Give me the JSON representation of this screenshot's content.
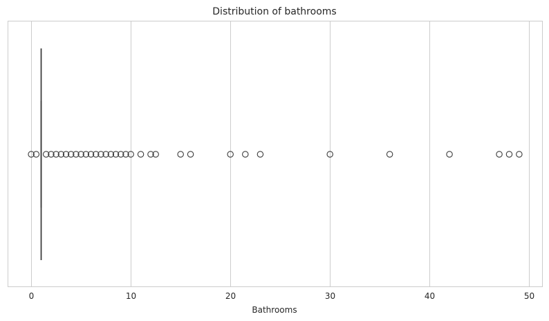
{
  "chart_data": {
    "type": "boxplot",
    "orientation": "horizontal",
    "title": "Distribution of bathrooms",
    "xlabel": "Bathrooms",
    "ylabel": "",
    "xlim": [
      -2.3,
      51.3
    ],
    "xticks": [
      0,
      10,
      20,
      30,
      40,
      50
    ],
    "grid": true,
    "box": {
      "whisker_low": 1.0,
      "q1": 1.0,
      "median": 1.0,
      "q3": 1.0,
      "whisker_high": 1.0
    },
    "outliers": [
      0,
      0.5,
      1.5,
      2,
      2.5,
      3,
      3.5,
      4,
      4.5,
      5,
      5.5,
      6,
      6.5,
      7,
      7.5,
      8,
      8.5,
      9,
      9.5,
      10,
      11,
      12,
      12.5,
      15,
      16,
      20,
      21.5,
      23,
      30,
      36,
      42,
      47,
      48,
      49
    ],
    "colors": {
      "grid": "#cccccc",
      "frame": "#cccccc",
      "box_line": "#3a3a3a",
      "outlier_edge": "#3a3a3a"
    }
  }
}
